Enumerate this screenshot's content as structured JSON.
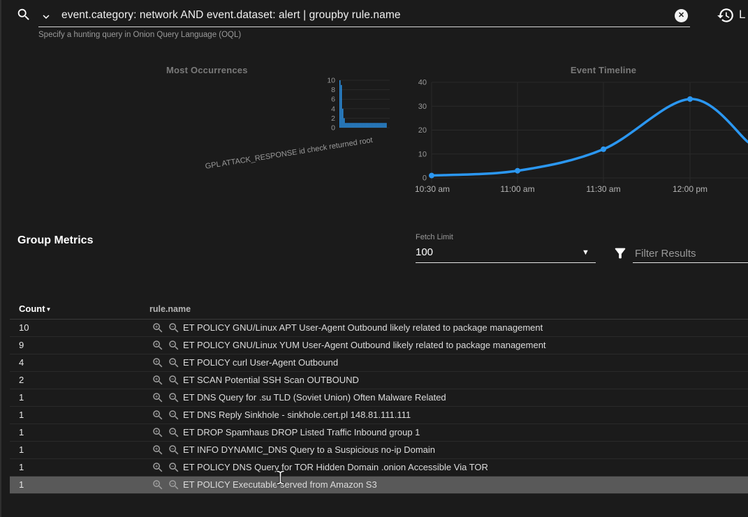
{
  "topbar": {
    "query": "event.category: network AND event.dataset: alert | groupby rule.name",
    "hint": "Specify a hunting query in Onion Query Language (OQL)",
    "clear_glyph": "✕",
    "clipped_right_label": "L"
  },
  "chart_data": [
    {
      "type": "bar",
      "title": "Most Occurrences",
      "values": [
        10,
        9,
        4,
        2,
        1,
        1,
        1,
        1,
        1,
        1,
        1,
        1,
        1,
        1,
        1,
        1,
        1,
        1,
        1,
        1,
        1,
        1,
        1,
        1,
        1,
        1,
        1,
        1,
        1,
        1,
        1,
        1,
        1,
        1
      ],
      "yticks": [
        0,
        2,
        4,
        6,
        8,
        10
      ],
      "ylim": [
        0,
        10
      ],
      "visible_x_label": "GPL ATTACK_RESPONSE id check returned root",
      "bar_color": "#2b97f1",
      "grid": true,
      "legend": "none"
    },
    {
      "type": "line",
      "title": "Event Timeline",
      "x": [
        "10:30 am",
        "11:00 am",
        "11:30 am",
        "12:00 pm"
      ],
      "values": [
        1,
        3,
        12,
        33
      ],
      "trailing_edge_value": 15,
      "yticks": [
        0,
        10,
        20,
        30,
        40
      ],
      "ylim": [
        0,
        40
      ],
      "line_color": "#2b97f1",
      "grid": true,
      "legend": "none"
    }
  ],
  "group_metrics": {
    "heading": "Group Metrics",
    "fetch_limit": {
      "label": "Fetch Limit",
      "value": "100"
    },
    "filter": {
      "placeholder": "Filter Results"
    }
  },
  "table": {
    "columns": [
      {
        "label": "Count",
        "sorted": "desc"
      },
      {
        "label": "rule.name"
      }
    ],
    "rows": [
      {
        "count": "10",
        "rule": "ET POLICY GNU/Linux APT User-Agent Outbound likely related to package management"
      },
      {
        "count": "9",
        "rule": "ET POLICY GNU/Linux YUM User-Agent Outbound likely related to package management"
      },
      {
        "count": "4",
        "rule": "ET POLICY curl User-Agent Outbound"
      },
      {
        "count": "2",
        "rule": "ET SCAN Potential SSH Scan OUTBOUND"
      },
      {
        "count": "1",
        "rule": "ET DNS Query for .su TLD (Soviet Union) Often Malware Related"
      },
      {
        "count": "1",
        "rule": "ET DNS Reply Sinkhole - sinkhole.cert.pl 148.81.111.111"
      },
      {
        "count": "1",
        "rule": "ET DROP Spamhaus DROP Listed Traffic Inbound group 1"
      },
      {
        "count": "1",
        "rule": "ET INFO DYNAMIC_DNS Query to a Suspicious no-ip Domain"
      },
      {
        "count": "1",
        "rule": "ET POLICY DNS Query for TOR Hidden Domain .onion Accessible Via TOR"
      },
      {
        "count": "1",
        "rule": "ET POLICY Executable served from Amazon S3"
      }
    ],
    "highlighted_row_index": 9
  },
  "icons": {
    "search": "search-icon",
    "chevron": "chevron-down-icon",
    "clear": "clear-circle-icon",
    "history": "history-icon",
    "filter": "filter-funnel-icon",
    "zoom_in": "zoom-in-icon",
    "zoom_out": "zoom-out-icon",
    "text_cursor": "i-beam-cursor"
  },
  "colors": {
    "background": "#1b1b1b",
    "accent_blue": "#2b97f1",
    "row_highlight": "#595959",
    "muted_text": "#9a9a9a"
  }
}
